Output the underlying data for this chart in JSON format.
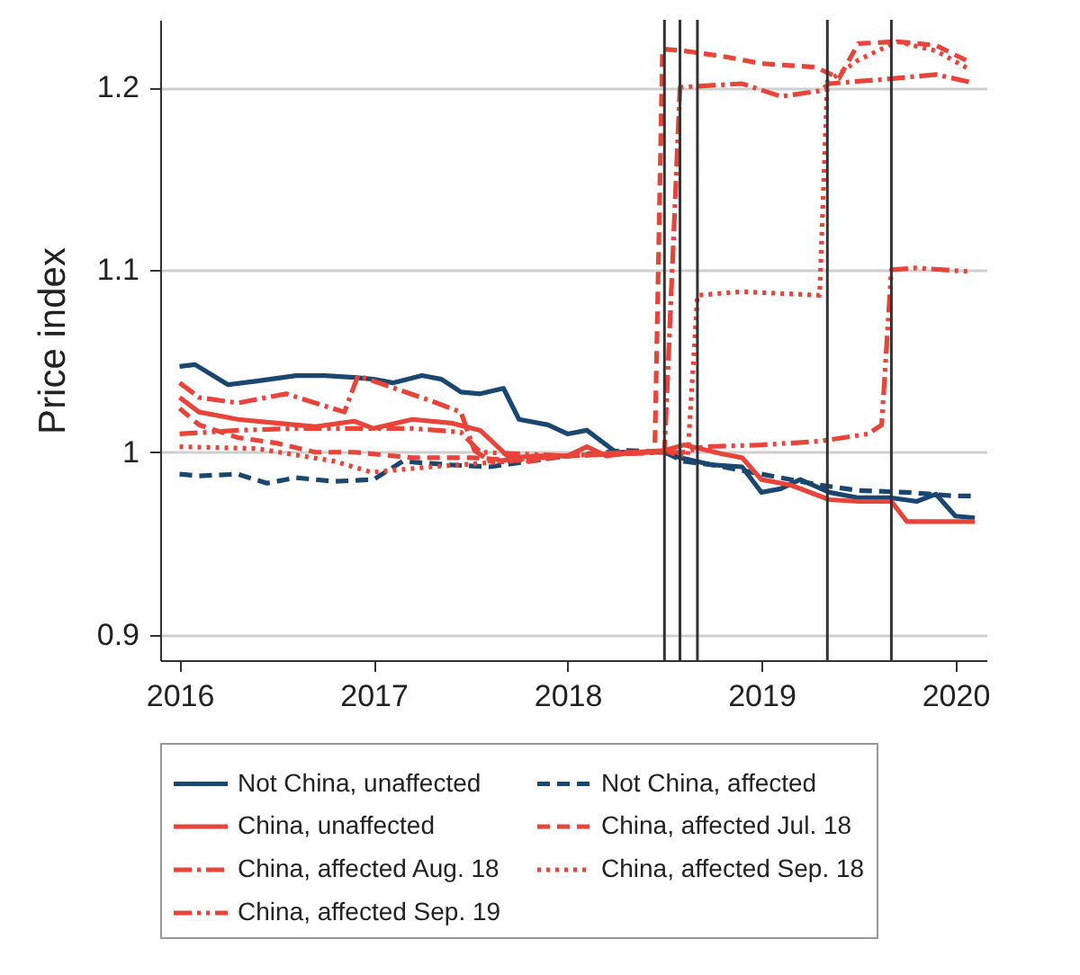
{
  "chart_data": {
    "type": "line",
    "ylabel": "Price index",
    "xlim": [
      2015.9,
      2020.16
    ],
    "xticks": [
      2016,
      2017,
      2018,
      2019,
      2020
    ],
    "ylim": [
      0.886,
      1.237
    ],
    "yticks": [
      0.9,
      1,
      1.1,
      1.2
    ],
    "grid": "y",
    "legend": "bottom",
    "marker": "none",
    "ref_lines": [
      {
        "axis": "x",
        "value": 2018.5,
        "label": null,
        "color": "#333333"
      },
      {
        "axis": "x",
        "value": 2018.58,
        "label": null,
        "color": "#333333"
      },
      {
        "axis": "x",
        "value": 2018.67,
        "label": null,
        "color": "#333333"
      },
      {
        "axis": "x",
        "value": 2019.34,
        "label": null,
        "color": "#333333"
      },
      {
        "axis": "x",
        "value": 2019.67,
        "label": null,
        "color": "#333333"
      }
    ],
    "series": [
      {
        "name": "Not China, unaffected",
        "color": "#1a476f",
        "line_style": "solid",
        "x": [
          2016.0,
          2016.08,
          2016.25,
          2016.4,
          2016.6,
          2016.75,
          2016.9,
          2017.0,
          2017.1,
          2017.25,
          2017.35,
          2017.45,
          2017.55,
          2017.67,
          2017.75,
          2017.9,
          2018.0,
          2018.1,
          2018.25,
          2018.4,
          2018.5,
          2018.58,
          2018.75,
          2018.9,
          2019.0,
          2019.1,
          2019.2,
          2019.35,
          2019.5,
          2019.67,
          2019.8,
          2019.9,
          2020.0,
          2020.1
        ],
        "values": [
          1.047,
          1.048,
          1.037,
          1.039,
          1.042,
          1.042,
          1.041,
          1.04,
          1.038,
          1.042,
          1.04,
          1.033,
          1.032,
          1.035,
          1.018,
          1.015,
          1.01,
          1.012,
          1.0,
          1.0,
          1.0,
          0.997,
          0.993,
          0.992,
          0.978,
          0.98,
          0.985,
          0.978,
          0.975,
          0.975,
          0.973,
          0.977,
          0.965,
          0.964
        ]
      },
      {
        "name": "Not China, affected",
        "color": "#1a476f",
        "line_style": "dashed",
        "x": [
          2016.0,
          2016.1,
          2016.3,
          2016.45,
          2016.6,
          2016.8,
          2017.0,
          2017.15,
          2017.4,
          2017.6,
          2017.8,
          2018.0,
          2018.3,
          2018.5,
          2018.6,
          2018.75,
          2019.0,
          2019.3,
          2019.5,
          2019.75,
          2020.0,
          2020.1
        ],
        "values": [
          0.988,
          0.987,
          0.988,
          0.983,
          0.986,
          0.984,
          0.985,
          0.995,
          0.993,
          0.992,
          0.995,
          0.998,
          1.001,
          1.0,
          0.995,
          0.993,
          0.988,
          0.982,
          0.979,
          0.978,
          0.976,
          0.976
        ]
      },
      {
        "name": "China, unaffected",
        "color": "#e8443a",
        "line_style": "solid",
        "x": [
          2016.0,
          2016.1,
          2016.3,
          2016.5,
          2016.7,
          2016.9,
          2017.0,
          2017.2,
          2017.4,
          2017.55,
          2017.7,
          2017.85,
          2018.0,
          2018.1,
          2018.2,
          2018.35,
          2018.5,
          2018.6,
          2018.8,
          2018.9,
          2019.0,
          2019.15,
          2019.35,
          2019.5,
          2019.67,
          2019.75,
          2019.9,
          2020.1
        ],
        "values": [
          1.03,
          1.022,
          1.018,
          1.016,
          1.014,
          1.017,
          1.013,
          1.018,
          1.016,
          1.012,
          0.997,
          0.998,
          0.998,
          1.003,
          0.998,
          1.0,
          1.001,
          1.004,
          0.999,
          0.997,
          0.985,
          0.982,
          0.974,
          0.973,
          0.973,
          0.962,
          0.962,
          0.962
        ]
      },
      {
        "name": "China, affected Jul. 18",
        "color": "#e8443a",
        "line_style": "dashed",
        "x": [
          2016.0,
          2016.1,
          2016.3,
          2016.5,
          2016.7,
          2016.9,
          2017.2,
          2017.5,
          2017.8,
          2018.0,
          2018.3,
          2018.45,
          2018.49,
          2018.6,
          2018.8,
          2019.0,
          2019.28,
          2019.4,
          2019.5,
          2019.7,
          2019.9,
          2020.07
        ],
        "values": [
          1.024,
          1.015,
          1.008,
          1.005,
          1.0,
          1.0,
          0.997,
          0.997,
          0.995,
          0.998,
          1.0,
          1.0,
          1.221,
          1.22,
          1.217,
          1.213,
          1.211,
          1.205,
          1.224,
          1.225,
          1.223,
          1.214
        ]
      },
      {
        "name": "China, affected Aug. 18",
        "color": "#e8443a",
        "line_style": "dashdot",
        "x": [
          2016.0,
          2016.1,
          2016.3,
          2016.55,
          2016.85,
          2016.92,
          2017.3,
          2017.45,
          2017.52,
          2017.6,
          2018.0,
          2018.5,
          2018.58,
          2018.9,
          2019.1,
          2019.3,
          2019.35,
          2019.7,
          2019.9,
          2020.07
        ],
        "values": [
          1.038,
          1.03,
          1.027,
          1.032,
          1.022,
          1.042,
          1.028,
          1.022,
          1.001,
          0.995,
          0.998,
          1.0,
          1.2,
          1.202,
          1.195,
          1.198,
          1.202,
          1.205,
          1.207,
          1.203
        ]
      },
      {
        "name": "China, affected Sep. 18",
        "color": "#e8443a",
        "line_style": "dotted",
        "x": [
          2016.0,
          2016.4,
          2016.8,
          2016.99,
          2017.3,
          2017.7,
          2018.0,
          2018.3,
          2018.5,
          2018.62,
          2018.67,
          2018.9,
          2019.1,
          2019.3,
          2019.34,
          2019.5,
          2019.7,
          2019.9,
          2020.07
        ],
        "values": [
          1.003,
          1.002,
          0.995,
          0.989,
          0.992,
          0.995,
          0.998,
          1.0,
          1.0,
          0.998,
          1.086,
          1.088,
          1.087,
          1.086,
          1.203,
          1.215,
          1.225,
          1.22,
          1.21
        ]
      },
      {
        "name": "China, affected Sep. 19",
        "color": "#e8443a",
        "line_style": "dashdotdot",
        "x": [
          2016.0,
          2016.3,
          2016.6,
          2016.9,
          2017.2,
          2017.45,
          2017.55,
          2018.0,
          2018.5,
          2018.6,
          2018.7,
          2019.0,
          2019.3,
          2019.55,
          2019.62,
          2019.67,
          2019.8,
          2020.07
        ],
        "values": [
          1.01,
          1.012,
          1.013,
          1.013,
          1.013,
          1.011,
          1.0,
          0.998,
          1.0,
          1.0,
          1.003,
          1.004,
          1.006,
          1.01,
          1.015,
          1.1,
          1.101,
          1.099
        ]
      }
    ]
  }
}
